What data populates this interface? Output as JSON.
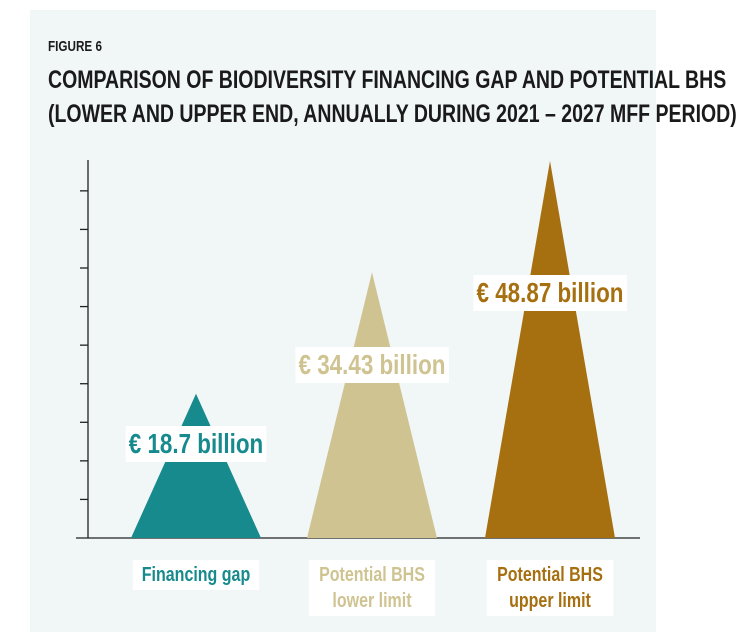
{
  "chart_data": {
    "type": "triangle-bar",
    "figure_label": "FIGURE 6",
    "title": "COMPARISON OF BIODIVERSITY FINANCING GAP AND POTENTIAL BHS",
    "subtitle": "(LOWER AND UPPER END, ANNUALLY DURING 2021 – 2027 MFF PERIOD)",
    "categories": [
      "Financing gap",
      "Potential BHS lower limit",
      "Potential BHS upper limit"
    ],
    "values": [
      18.7,
      34.43,
      48.87
    ],
    "value_labels": [
      "€ 18.7 billion",
      "€ 34.43 billion",
      "€ 48.87 billion"
    ],
    "colors": [
      "#168a8c",
      "#cfc391",
      "#a66f10"
    ],
    "ylim": [
      0,
      49
    ],
    "yticks": [
      5,
      10,
      15,
      20,
      25,
      30,
      35,
      40,
      45
    ]
  }
}
